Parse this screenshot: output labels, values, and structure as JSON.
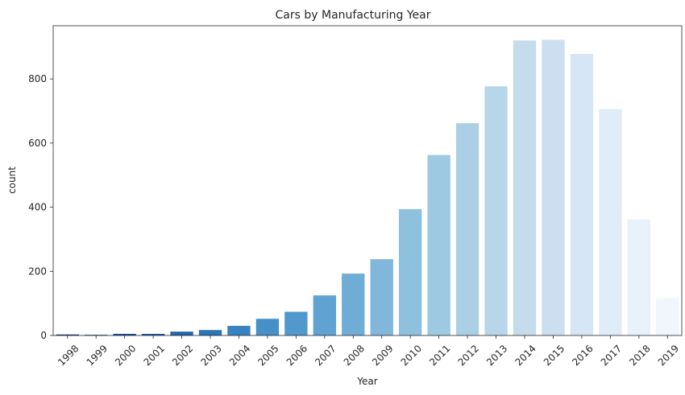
{
  "chart_data": {
    "type": "bar",
    "title": "Cars by Manufacturing Year",
    "xlabel": "Year",
    "ylabel": "count",
    "categories": [
      "1998",
      "1999",
      "2000",
      "2001",
      "2002",
      "2003",
      "2004",
      "2005",
      "2006",
      "2007",
      "2008",
      "2009",
      "2010",
      "2011",
      "2012",
      "2013",
      "2014",
      "2015",
      "2016",
      "2017",
      "2018",
      "2019"
    ],
    "values": [
      3,
      2,
      5,
      5,
      12,
      17,
      30,
      52,
      74,
      125,
      193,
      238,
      394,
      563,
      662,
      777,
      920,
      922,
      878,
      706,
      362,
      117
    ],
    "colors": [
      "#08306b",
      "#083e81",
      "#0d4b95",
      "#1658a2",
      "#2066ac",
      "#2c74b6",
      "#3882c0",
      "#4490c7",
      "#5199cc",
      "#60a3d3",
      "#70add6",
      "#80b7da",
      "#8ec1dd",
      "#9ec9e2",
      "#abd0e6",
      "#b8d6ea",
      "#c5dced",
      "#ccdff1",
      "#d6e6f4",
      "#e0ecf7",
      "#e9f2fa",
      "#f1f6fc"
    ],
    "ylim": [
      0,
      966
    ],
    "yticks": [
      0,
      200,
      400,
      600,
      800
    ],
    "grid": false,
    "legend": "none"
  }
}
